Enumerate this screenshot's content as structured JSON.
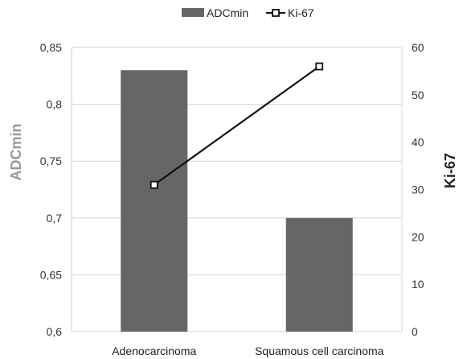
{
  "chart_data": {
    "type": "bar",
    "categories": [
      "Adenocarcinoma",
      "Squamous cell carcinoma"
    ],
    "series": [
      {
        "name": "ADCmin",
        "type": "bar",
        "axis": "left",
        "values": [
          0.83,
          0.7
        ],
        "color": "#666666"
      },
      {
        "name": "Ki-67",
        "type": "line",
        "axis": "right",
        "values": [
          31,
          56
        ],
        "color": "#111111"
      }
    ],
    "ylabel": "ADCmin",
    "ylabel_right": "Ki-67",
    "ylim": [
      0.6,
      0.85
    ],
    "ylim_right": [
      0,
      60
    ],
    "yticks": [
      "0,6",
      "0,65",
      "0,7",
      "0,75",
      "0,8",
      "0,85"
    ],
    "yticks_right": [
      "0",
      "10",
      "20",
      "30",
      "40",
      "50",
      "60"
    ],
    "grid": true,
    "legend_position": "top-center"
  }
}
